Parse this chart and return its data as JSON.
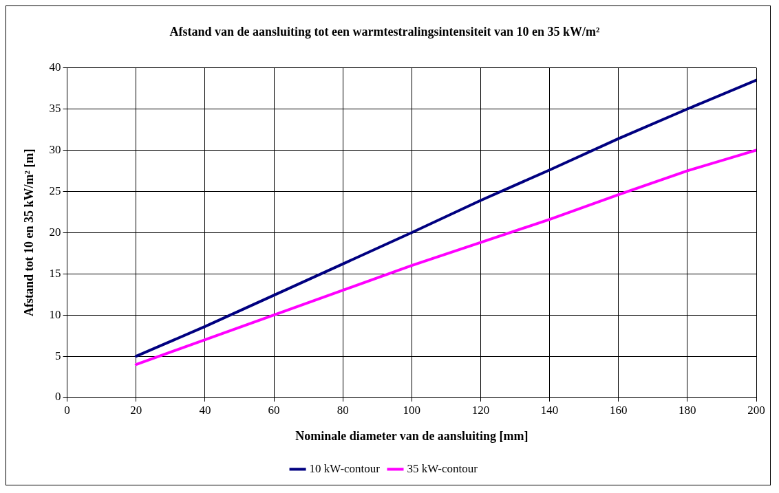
{
  "chart_data": {
    "type": "line",
    "title": "Afstand van de aansluiting tot een warmtestralingsintensiteit van 10 en 35 kW/m²",
    "xlabel": "Nominale diameter van de aansluiting [mm]",
    "ylabel": "Afstand tot 10 en 35 kW/m² [m]",
    "x": [
      20,
      40,
      60,
      80,
      100,
      120,
      140,
      160,
      180,
      200
    ],
    "series": [
      {
        "name": "10 kW-contour",
        "color": "#000080",
        "values": [
          5,
          8.6,
          12.4,
          16.2,
          20,
          23.9,
          27.6,
          31.4,
          35,
          38.5
        ]
      },
      {
        "name": "35 kW-contour",
        "color": "#ff00ff",
        "values": [
          4,
          7,
          10,
          13,
          16,
          18.8,
          21.6,
          24.6,
          27.5,
          30
        ]
      }
    ],
    "xlim": [
      0,
      200
    ],
    "xticks": [
      0,
      20,
      40,
      60,
      80,
      100,
      120,
      140,
      160,
      180,
      200
    ],
    "ylim": [
      0,
      40
    ],
    "yticks": [
      0,
      5,
      10,
      15,
      20,
      25,
      30,
      35,
      40
    ],
    "grid": true,
    "legend": "bottom",
    "marker": "none",
    "line_style": "solid"
  }
}
